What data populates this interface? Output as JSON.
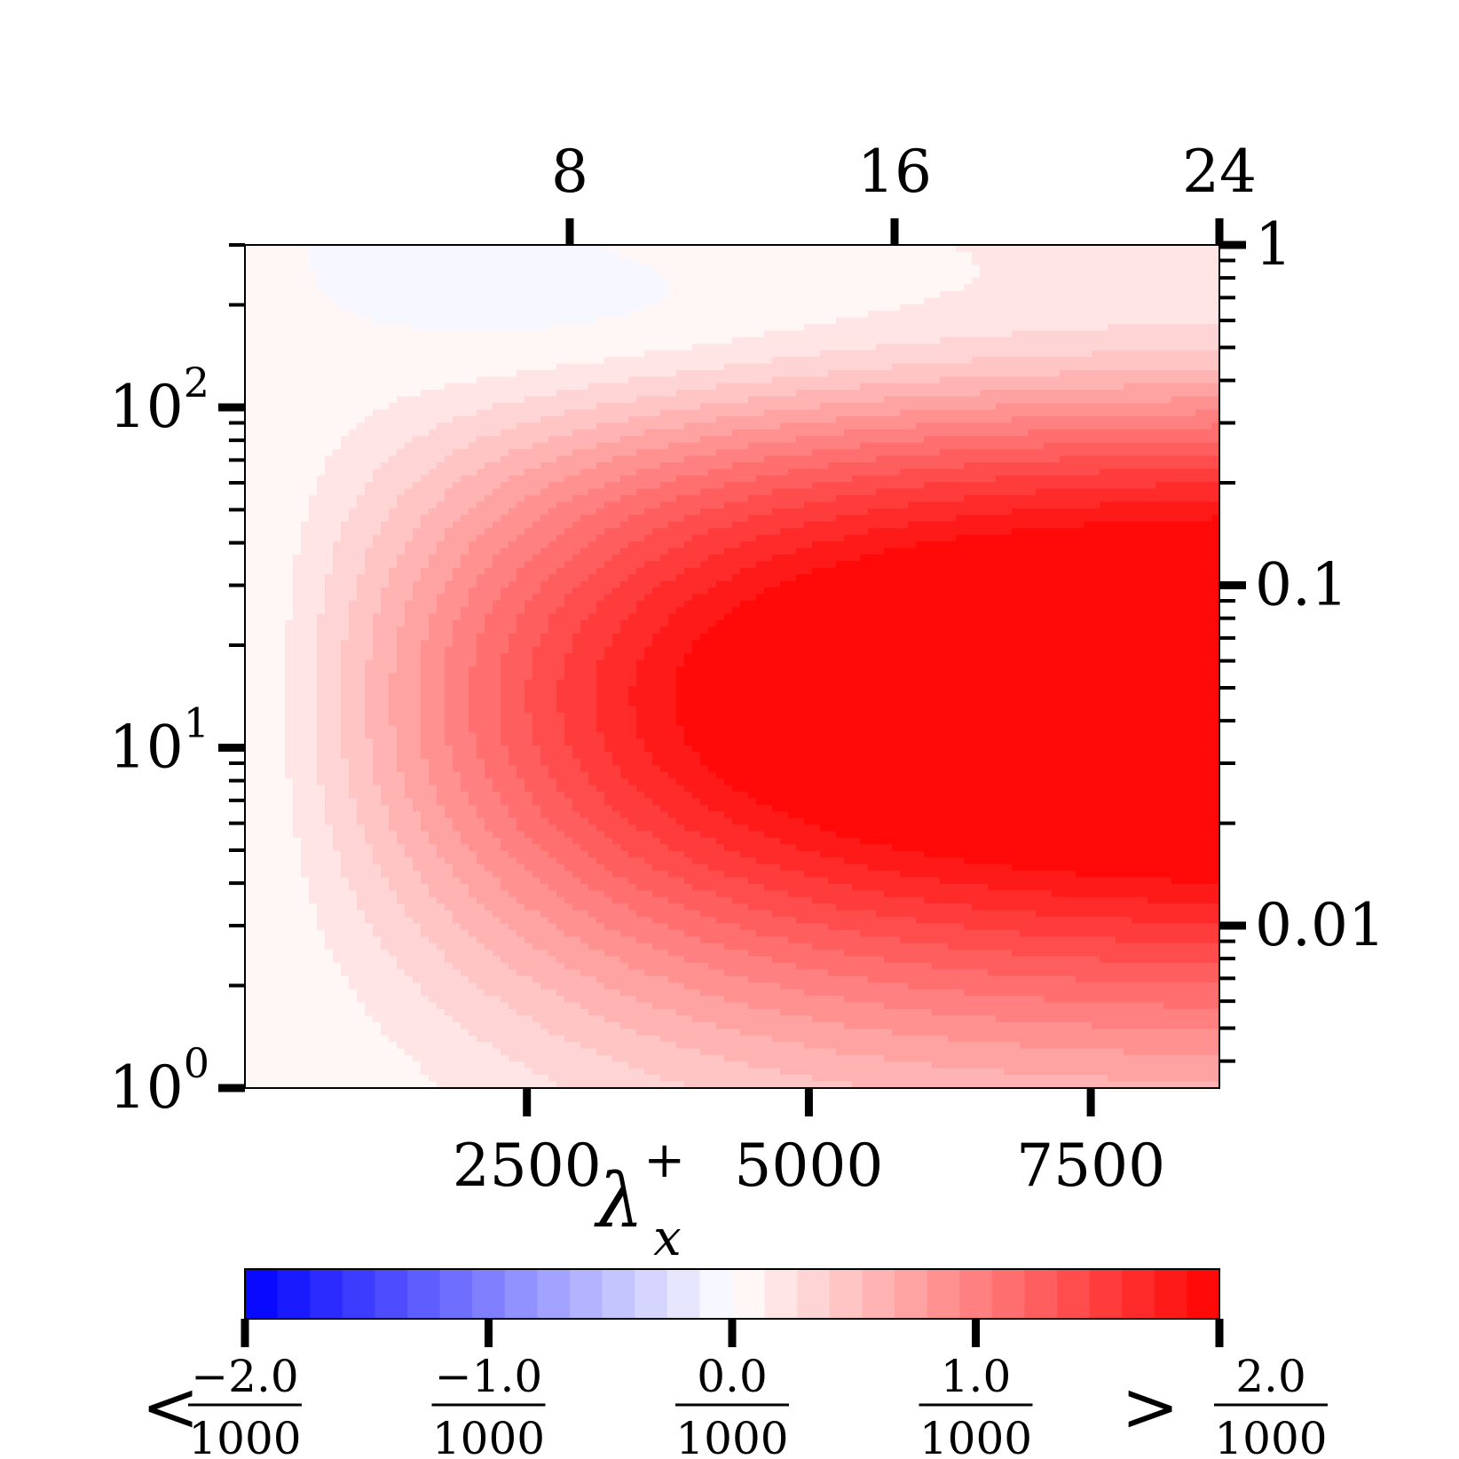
{
  "chart_data": {
    "type": "heatmap",
    "title": "",
    "xlabel": "λ",
    "xlabel_sub": "x",
    "xlabel_sup": "+",
    "ylabel": "",
    "x_scale": "linear",
    "y_scale": "log",
    "xlim": [
      0,
      8640
    ],
    "ylim": [
      1,
      300
    ],
    "x_ticks": [
      {
        "value": 2500,
        "label": "2500"
      },
      {
        "value": 5000,
        "label": "5000"
      },
      {
        "value": 7500,
        "label": "7500"
      }
    ],
    "y_ticks": [
      {
        "value": 1,
        "base": "10",
        "exp": "0"
      },
      {
        "value": 10,
        "base": "10",
        "exp": "1"
      },
      {
        "value": 100,
        "base": "10",
        "exp": "2"
      }
    ],
    "top_axis": {
      "scale": "linear",
      "ticks": [
        {
          "value": 8,
          "label": "8"
        },
        {
          "value": 16,
          "label": "16"
        },
        {
          "value": 24,
          "label": "24"
        }
      ]
    },
    "right_axis": {
      "scale": "log",
      "ticks": [
        {
          "value": 1,
          "label": "1"
        },
        {
          "value": 0.1,
          "label": "0.1"
        },
        {
          "value": 0.01,
          "label": "0.01"
        }
      ]
    },
    "colorbar": {
      "colormap": "bwr",
      "vmin": -0.002,
      "vmax": 0.002,
      "levels": 30,
      "low_color": "#0000ff",
      "mid_color": "#ffffff",
      "high_color": "#ff0000",
      "under_symbol": "<",
      "over_symbol": ">",
      "ticks": [
        {
          "num": "−2.0",
          "den": "1000"
        },
        {
          "num": "−1.0",
          "den": "1000"
        },
        {
          "num": "0.0",
          "den": "1000"
        },
        {
          "num": "1.0",
          "den": "1000"
        },
        {
          "num": "2.0",
          "den": "1000"
        }
      ]
    },
    "field_description_values": {
      "peak_value": 0.002,
      "peak_y": 14,
      "negative_peak_value": -0.00045,
      "negative_peak_y": 160
    }
  }
}
